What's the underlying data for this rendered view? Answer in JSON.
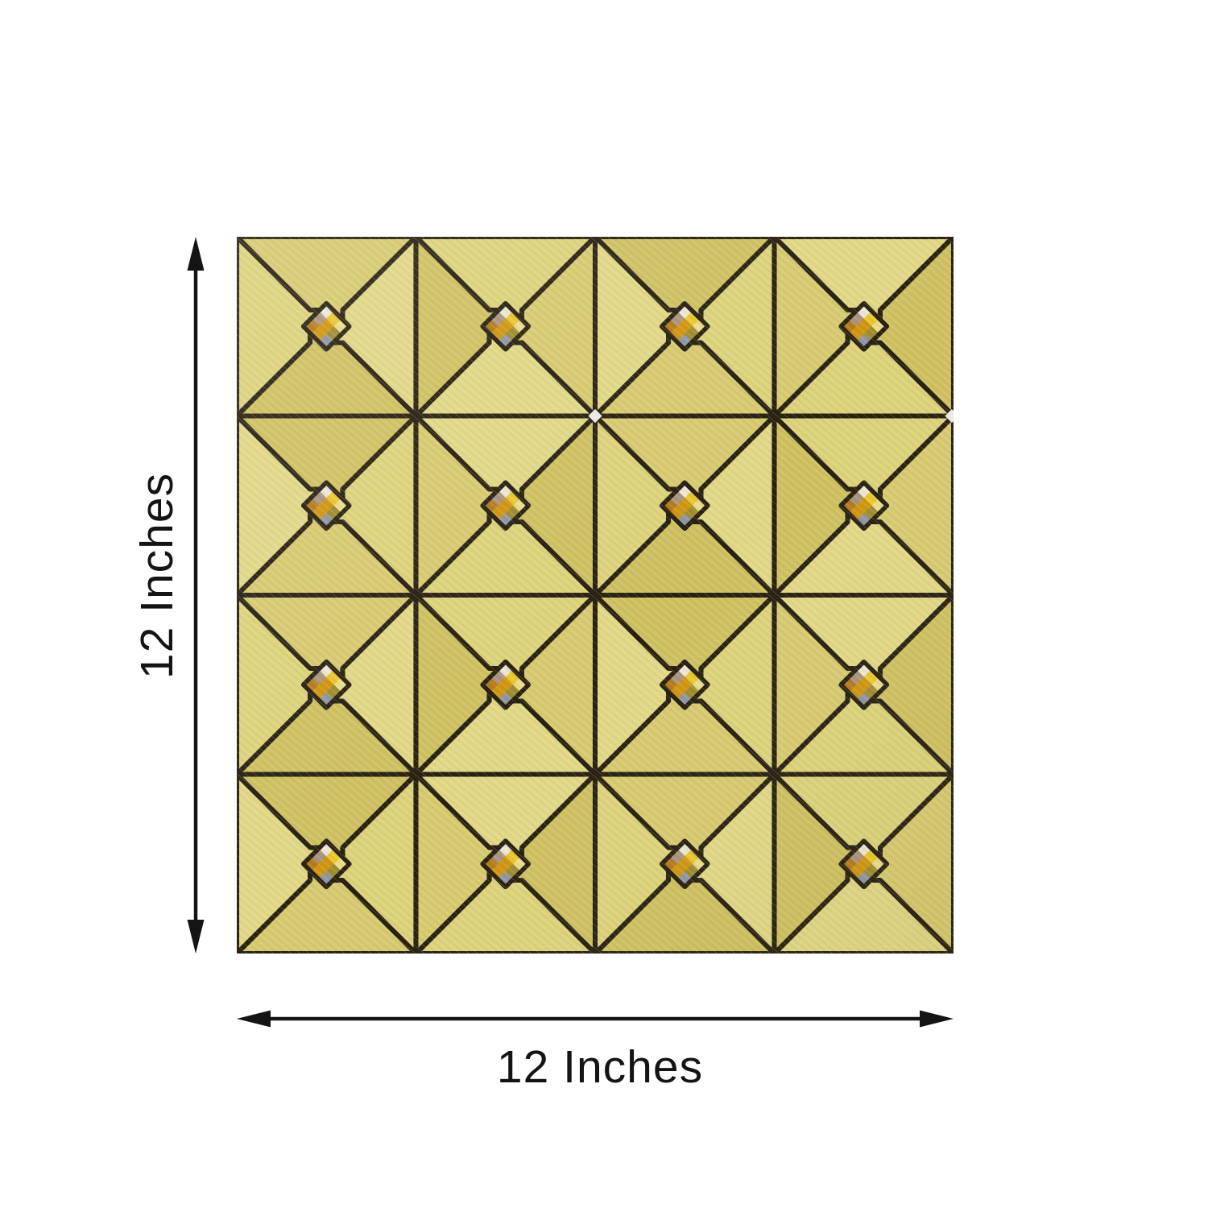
{
  "dimensions": {
    "height_label": "12 Inches",
    "width_label": "12 Inches"
  },
  "tile": {
    "rows": 4,
    "cols": 4,
    "block_size": 220,
    "colors": {
      "background": "#ffffff",
      "annotation": "#141414",
      "grout": "#251e0f",
      "gold_a": "#d7c96f",
      "gold_b": "#e1d785",
      "gold_c": "#cec060",
      "gold_d": "#dcd27a",
      "gem_base": "#caa11a",
      "gem_bright": "#e9c62a",
      "gem_pale": "#eadc8a",
      "gem_white": "#ece6d4",
      "gem_mauve": "#a8927f",
      "gem_deep": "#cf940f",
      "gem_olive": "#9d8a2e",
      "gem_amber": "#b5791a",
      "gem_slate": "#8d95a2"
    }
  }
}
